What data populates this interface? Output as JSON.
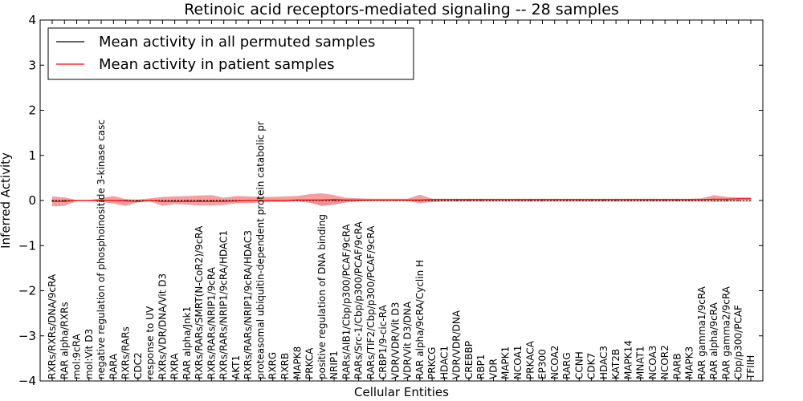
{
  "chart_data": {
    "type": "line",
    "title": "Retinoic acid receptors-mediated signaling -- 28 samples",
    "xlabel": "Cellular Entities",
    "ylabel": "Inferred Activity",
    "ylim": [
      -4,
      4
    ],
    "yticks": [
      "−4",
      "−3",
      "−2",
      "−1",
      "0",
      "1",
      "2",
      "3",
      "4"
    ],
    "legend_position": "top-left",
    "legend": [
      {
        "label": "Mean activity in all permuted samples",
        "color": "#000000"
      },
      {
        "label": "Mean activity in patient samples",
        "color": "#ff0000"
      }
    ],
    "categories": [
      "RXRs/RXRs/DNA/9cRA",
      "RAR alpha/RXRs",
      "mol:9cRA",
      "mol:Vit D3",
      "negative regulation of phosphoinositide 3-kinase casc",
      "RARA",
      "RXRs/RARs",
      "CDC2",
      "response to UV",
      "RXRs/VDR/DNA/Vit D3",
      "RXRA",
      "RAR alpha/Jnk1",
      "RXRs/RARs/SMRT(N-CoR2)/9cRA",
      "RXRs/RARs/NRIP1/9cRA",
      "RXRs/RARs/NRIP1/9cRA/HDAC1",
      "AKT1",
      "RXRs/RARs/NRIP1/9cRA/HDAC3",
      "proteasomal ubiquitin-dependent protein catabolic pr",
      "RXRG",
      "RXRB",
      "MAPK8",
      "PRKCA",
      "positive regulation of DNA binding",
      "NRIP1",
      "RARs/AIB1/Cbp/p300/PCAF/9cRA",
      "RARs/Src-1/Cbp/p300/PCAF/9cRA",
      "RARs/TIF2/Cbp/p300/PCAF/9cRA",
      "CRBP1/9-cic-RA",
      "VDR/VDR/Vit D3",
      "VDR/Vit D3/DNA",
      "RAR alpha/9cRA/Cyclin H",
      "PRKCG",
      "HDAC1",
      "VDR/VDR/DNA",
      "CREBBP",
      "RBP1",
      "VDR",
      "MAPK1",
      "NCOA1",
      "PRKACA",
      "EP300",
      "NCOA2",
      "RARG",
      "CCNH",
      "CDK7",
      "HDAC3",
      "KAT2B",
      "MAPK14",
      "MNAT1",
      "NCOA3",
      "NCOR2",
      "RARB",
      "MAPK3",
      "RAR gamma1/9cRA",
      "RAR alpha/9cRA",
      "RAR gamma2/9cRA",
      "Cbp/p300/PCAF",
      "TFIIH"
    ],
    "series": [
      {
        "name": "Mean activity in all permuted samples",
        "color": "#000000",
        "values": [
          0,
          0,
          0,
          0,
          0,
          0,
          0,
          0,
          0,
          0,
          0,
          0,
          0,
          0,
          0,
          0,
          0,
          0,
          0,
          0,
          0,
          0,
          0,
          0,
          0,
          0,
          0,
          0,
          0,
          0,
          0,
          0,
          0,
          0,
          0,
          0,
          0,
          0,
          0,
          0,
          0,
          0,
          0,
          0,
          0,
          0,
          0,
          0,
          0,
          0,
          0,
          0,
          0,
          0,
          0,
          0,
          0,
          0
        ],
        "lower": [
          -0.01,
          -0.01,
          -0.01,
          -0.01,
          -0.01,
          -0.01,
          -0.01,
          -0.01,
          -0.01,
          -0.01,
          -0.01,
          -0.01,
          -0.01,
          -0.01,
          -0.01,
          -0.01,
          -0.01,
          -0.01,
          -0.01,
          -0.01,
          -0.01,
          -0.03,
          -0.12,
          -0.09,
          -0.04,
          -0.02,
          -0.01,
          -0.01,
          -0.01,
          -0.01,
          -0.03,
          -0.04,
          -0.03,
          -0.03,
          -0.03,
          -0.03,
          -0.03,
          -0.03,
          -0.03,
          -0.03,
          -0.03,
          -0.03,
          -0.03,
          -0.03,
          -0.03,
          -0.03,
          -0.03,
          -0.03,
          -0.03,
          -0.03,
          -0.03,
          -0.03,
          -0.03,
          -0.03,
          -0.03,
          -0.03,
          -0.03,
          -0.03
        ],
        "upper": [
          0.01,
          0.01,
          0.01,
          0.01,
          0.01,
          0.01,
          0.01,
          0.01,
          0.01,
          0.01,
          0.01,
          0.01,
          0.01,
          0.01,
          0.01,
          0.01,
          0.01,
          0.01,
          0.01,
          0.01,
          0.01,
          0.01,
          0.01,
          0.01,
          0.01,
          0.01,
          0.01,
          0.01,
          0.01,
          0.01,
          0.01,
          0.01,
          0.01,
          0.01,
          0.01,
          0.01,
          0.01,
          0.01,
          0.01,
          0.01,
          0.01,
          0.01,
          0.01,
          0.01,
          0.01,
          0.01,
          0.01,
          0.01,
          0.01,
          0.01,
          0.01,
          0.01,
          0.01,
          0.01,
          0.01,
          0.01,
          0.01,
          0.01
        ]
      },
      {
        "name": "Mean activity in patient samples",
        "color": "#ff0000",
        "values": [
          -0.02,
          -0.02,
          0,
          0,
          0,
          0,
          -0.01,
          -0.02,
          0,
          -0.02,
          -0.02,
          -0.02,
          -0.02,
          -0.02,
          -0.02,
          -0.01,
          0,
          0,
          0,
          0,
          0.01,
          0.01,
          0.01,
          0.02,
          0.01,
          0.01,
          0.01,
          0.01,
          0.01,
          0.01,
          0.01,
          0.02,
          0.02,
          0.02,
          0.02,
          0.02,
          0.02,
          0.02,
          0.02,
          0.02,
          0.02,
          0.02,
          0.02,
          0.02,
          0.02,
          0.02,
          0.02,
          0.02,
          0.02,
          0.02,
          0.02,
          0.02,
          0.02,
          0.02,
          0.03,
          0.03,
          0.04,
          0.04
        ],
        "lower": [
          -0.13,
          -0.12,
          -0.01,
          -0.01,
          -0.03,
          -0.07,
          -0.12,
          -0.04,
          -0.02,
          -0.12,
          -0.08,
          -0.09,
          -0.11,
          -0.11,
          -0.1,
          -0.06,
          -0.06,
          -0.04,
          -0.03,
          -0.03,
          -0.02,
          -0.05,
          -0.12,
          -0.09,
          -0.04,
          -0.02,
          -0.01,
          -0.01,
          -0.01,
          -0.01,
          -0.06,
          -0.03,
          -0.01,
          -0.01,
          -0.01,
          -0.01,
          -0.01,
          -0.01,
          -0.01,
          -0.01,
          -0.01,
          -0.01,
          -0.01,
          -0.01,
          -0.01,
          -0.01,
          -0.01,
          -0.01,
          -0.01,
          -0.01,
          -0.01,
          -0.01,
          -0.01,
          -0.01,
          -0.02,
          -0.02,
          0.01,
          0.02
        ],
        "upper": [
          0.09,
          0.07,
          0.01,
          0.01,
          0.05,
          0.1,
          0.03,
          0.02,
          0.05,
          0.08,
          0.09,
          0.1,
          0.11,
          0.12,
          0.06,
          0.1,
          0.09,
          0.08,
          0.08,
          0.09,
          0.1,
          0.14,
          0.16,
          0.12,
          0.06,
          0.05,
          0.04,
          0.04,
          0.04,
          0.04,
          0.13,
          0.04,
          0.04,
          0.04,
          0.04,
          0.04,
          0.04,
          0.04,
          0.04,
          0.04,
          0.04,
          0.04,
          0.04,
          0.04,
          0.04,
          0.04,
          0.04,
          0.04,
          0.04,
          0.04,
          0.04,
          0.04,
          0.04,
          0.05,
          0.12,
          0.08,
          0.07,
          0.07
        ]
      }
    ]
  }
}
